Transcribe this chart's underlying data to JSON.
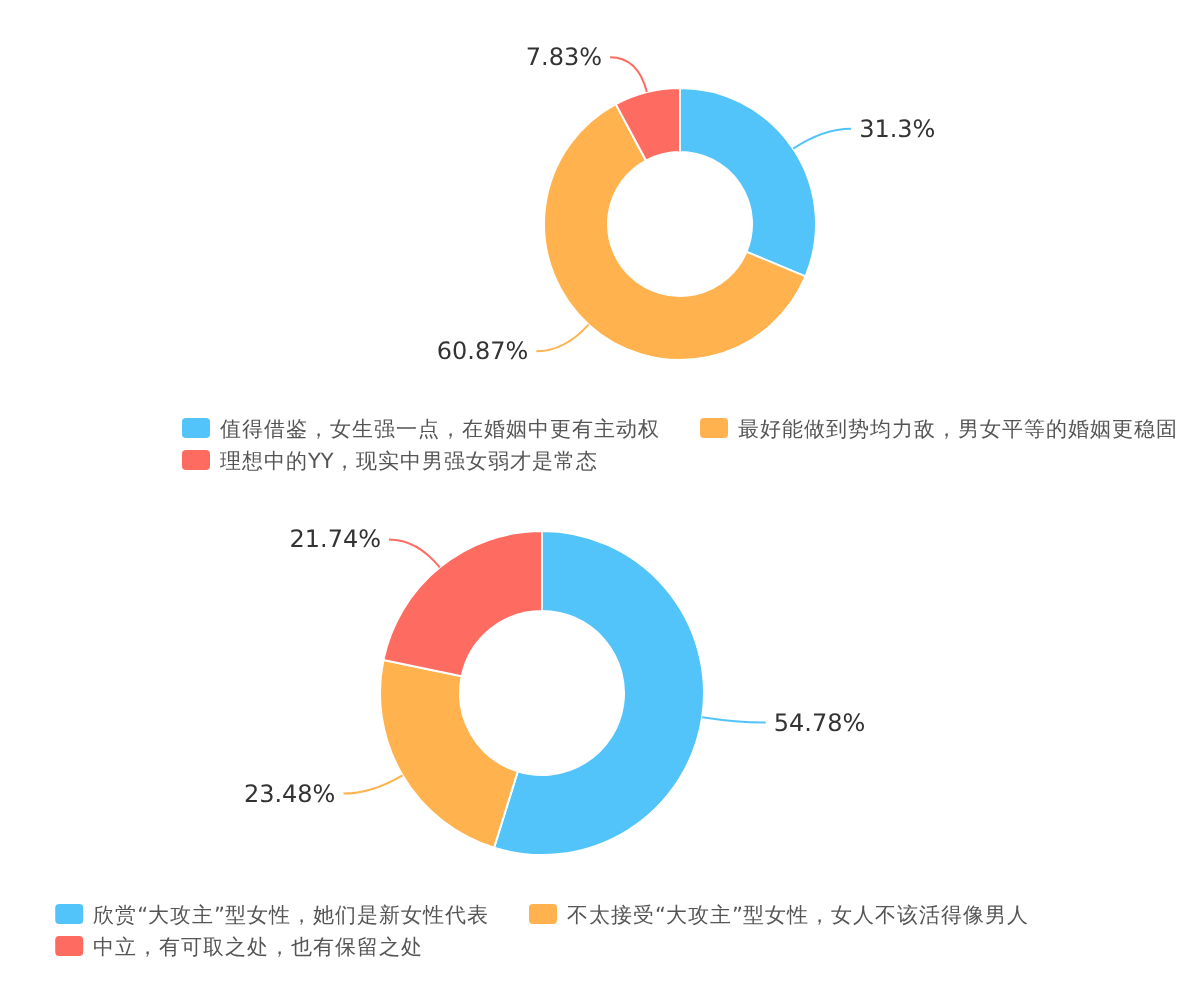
{
  "chart_data": [
    {
      "type": "donut",
      "categories": [
        "值得借鉴，女生强一点，在婚姻中更有主动权",
        "最好能做到势均力敌，男女平等的婚姻更稳固",
        "理想中的YY，现实中男强女弱才是常态"
      ],
      "values": [
        31.3,
        60.87,
        7.83
      ],
      "value_labels": [
        "31.3%",
        "60.87%",
        "7.83%"
      ],
      "colors": [
        "#52c4fa",
        "#ffb24d",
        "#fe6b60"
      ],
      "legend": "bottom"
    },
    {
      "type": "donut",
      "categories": [
        "欣赏“大攻主”型女性，她们是新女性代表",
        "不太接受“大攻主”型女性，女人不该活得像男人",
        "中立，有可取之处，也有保留之处"
      ],
      "values": [
        54.78,
        23.48,
        21.74
      ],
      "value_labels": [
        "54.78%",
        "23.48%",
        "21.74%"
      ],
      "colors": [
        "#52c4fa",
        "#ffb24d",
        "#fe6b60"
      ],
      "legend": "bottom"
    }
  ]
}
